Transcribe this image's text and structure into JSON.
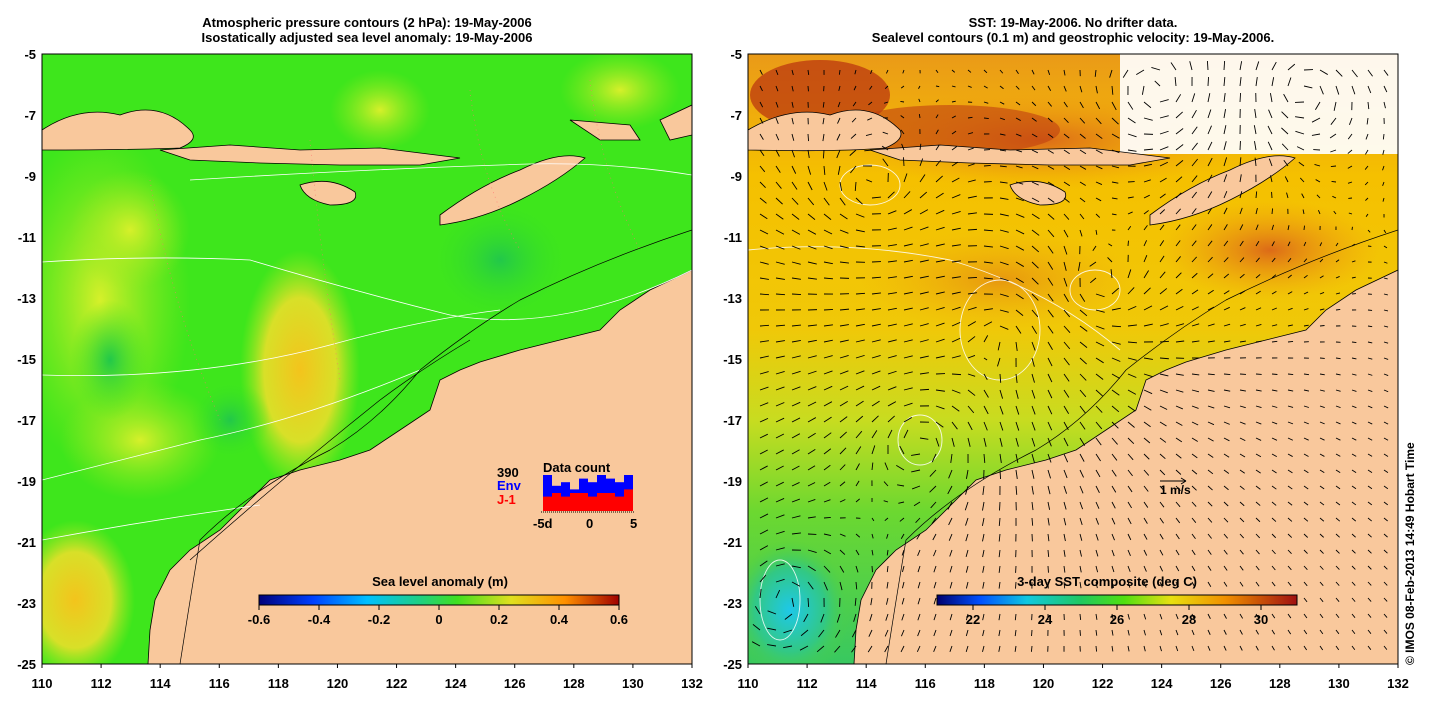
{
  "left_panel": {
    "title_line1": "Atmospheric pressure contours (2 hPa): 19-May-2006",
    "title_line2": "Isostatically adjusted sea level anomaly: 19-May-2006",
    "colorbar": {
      "label": "Sea level anomaly (m)",
      "ticks": [
        "-0.6",
        "-0.4",
        "-0.2",
        "0",
        "0.2",
        "0.4",
        "0.6"
      ]
    },
    "data_count": {
      "label": "Data count",
      "total": "390",
      "series_a_label": "Env",
      "series_b_label": "J-1",
      "x_labels": [
        "-5d",
        "0",
        "5"
      ],
      "series_a_color": "#0000ff",
      "series_b_color": "#ff0000",
      "env_values": [
        1.0,
        0.7,
        0.8,
        0.6,
        0.9,
        0.8,
        1.0,
        0.9,
        0.8,
        1.0
      ],
      "j1_values": [
        0.4,
        0.5,
        0.4,
        0.5,
        0.5,
        0.4,
        0.5,
        0.5,
        0.4,
        0.6
      ]
    }
  },
  "right_panel": {
    "title_line1": "SST: 19-May-2006. No drifter data.",
    "title_line2": "Sealevel contours (0.1 m) and geostrophic velocity: 19-May-2006.",
    "colorbar": {
      "label": "3-day SST composite (deg C)",
      "ticks": [
        "22",
        "24",
        "26",
        "28",
        "30"
      ]
    },
    "vector_scale_label": "1 m/s"
  },
  "axes": {
    "y_ticks": [
      "-5",
      "-7",
      "-9",
      "-11",
      "-13",
      "-15",
      "-17",
      "-19",
      "-21",
      "-23",
      "-25"
    ],
    "x_ticks": [
      "110",
      "112",
      "114",
      "116",
      "118",
      "120",
      "122",
      "124",
      "126",
      "128",
      "130",
      "132"
    ]
  },
  "credit": "© IMOS 08-Feb-2013 14:49 Hobart Time",
  "colors": {
    "land": "#f9c89c",
    "ocean_green": "#3ee61c",
    "sst_warm": "#f5b800",
    "sst_hot": "#c84a10",
    "sst_cool": "#1ec8e8"
  }
}
